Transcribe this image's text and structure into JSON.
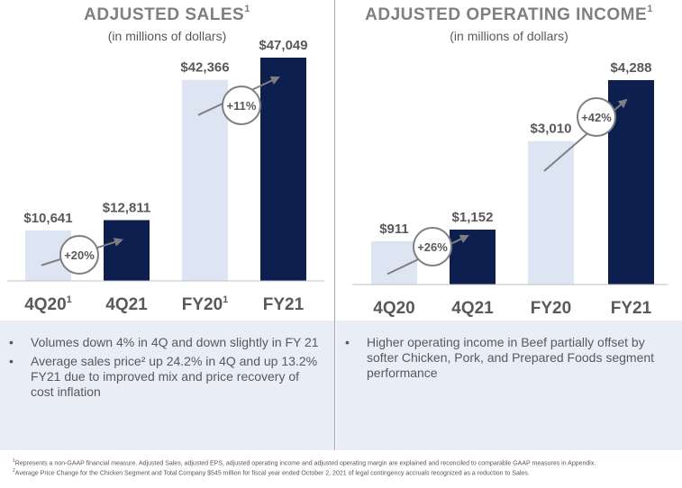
{
  "chart_data": [
    {
      "type": "bar",
      "title": "ADJUSTED SALES",
      "title_footnote": "1",
      "subtitle": "(in millions of dollars)",
      "categories": [
        "4Q20",
        "4Q21",
        "FY20",
        "FY21"
      ],
      "category_footnotes": [
        "1",
        "",
        "1",
        ""
      ],
      "values": [
        10641,
        12811,
        42366,
        47049
      ],
      "value_labels": [
        "$10,641",
        "$12,811",
        "$42,366",
        "$47,049"
      ],
      "bar_colors": [
        "#dce5f1",
        "#0d1f4f",
        "#dce5f1",
        "#0d1f4f"
      ],
      "growth_annotations": [
        {
          "label": "+20%",
          "from": "4Q20",
          "to": "4Q21"
        },
        {
          "label": "+11%",
          "from": "FY20",
          "to": "FY21"
        }
      ],
      "ylim": [
        0,
        50000
      ],
      "grid": false,
      "legend": "none"
    },
    {
      "type": "bar",
      "title": "ADJUSTED OPERATING INCOME",
      "title_footnote": "1",
      "subtitle": "(in millions of dollars)",
      "categories": [
        "4Q20",
        "4Q21",
        "FY20",
        "FY21"
      ],
      "category_footnotes": [
        "",
        "",
        "",
        ""
      ],
      "values": [
        911,
        1152,
        3010,
        4288
      ],
      "value_labels": [
        "$911",
        "$1,152",
        "$3,010",
        "$4,288"
      ],
      "bar_colors": [
        "#dce5f1",
        "#0d1f4f",
        "#dce5f1",
        "#0d1f4f"
      ],
      "growth_annotations": [
        {
          "label": "+26%",
          "from": "4Q20",
          "to": "4Q21"
        },
        {
          "label": "+42%",
          "from": "FY20",
          "to": "FY21"
        }
      ],
      "ylim": [
        0,
        4800
      ],
      "grid": false,
      "legend": "none"
    }
  ],
  "left_bullets": [
    "Volumes down 4% in 4Q and down slightly in FY 21",
    "Average sales price² up 24.2% in 4Q and up 13.2% FY21 due to improved mix and price recovery of cost inflation"
  ],
  "right_bullets": [
    "Higher operating income in Beef partially offset by softer Chicken, Pork, and Prepared Foods segment performance"
  ],
  "footnotes": [
    {
      "mark": "1",
      "text": "Represents a non-GAAP financial measure. Adjusted Sales, adjusted EPS, adjusted operating income and adjusted operating margin are explained and reconciled to comparable GAAP measures in Appendix."
    },
    {
      "mark": "2",
      "text": "Average Price Change for the Chicken Segment and Total Company $545 million for fiscal year ended October 2, 2021 of legal contingency accruals recognized as a reduction to Sales."
    }
  ],
  "colors": {
    "light_bar": "#dce5f1",
    "dark_bar": "#0d1f4f",
    "arrow": "#7f7f7f",
    "bullet_bg": "#e8edf6"
  }
}
